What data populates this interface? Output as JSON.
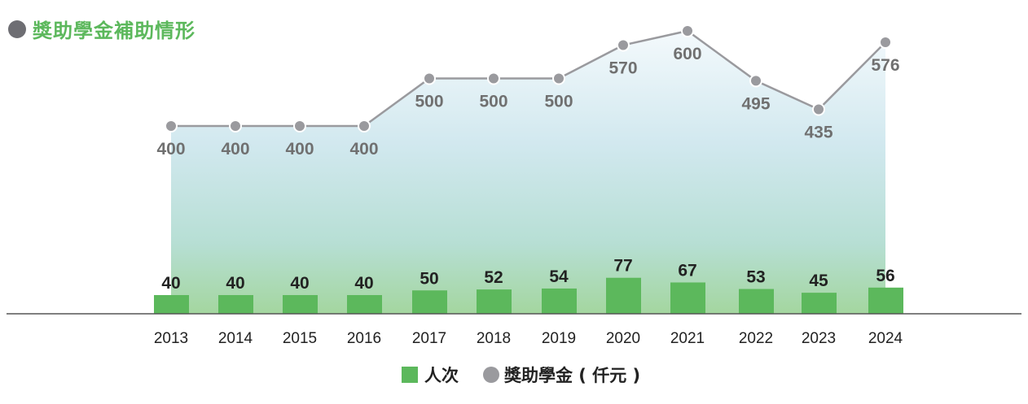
{
  "title": "獎助學金補助情形",
  "colors": {
    "title": "#5cb85c",
    "title_dot": "#6e6e73",
    "bar": "#5cb85c",
    "line": "#9a9a9e",
    "line_label": "#707070",
    "bar_label": "#222222",
    "area_top": "#e8f3f8",
    "area_mid": "#bfe0e6",
    "area_bottom": "#9fd49a",
    "axis": "#555555"
  },
  "legend": {
    "bar_label": "人次",
    "line_label": "獎助學金 ( 仟元 )"
  },
  "chart_data": {
    "type": "bar",
    "title": "獎助學金補助情形",
    "xlabel": "",
    "ylabel": "",
    "categories": [
      "2013",
      "2014",
      "2015",
      "2016",
      "2017",
      "2018",
      "2019",
      "2020",
      "2021",
      "2022",
      "2023",
      "2024"
    ],
    "series": [
      {
        "name": "人次",
        "type": "bar",
        "values": [
          40,
          40,
          40,
          40,
          50,
          52,
          54,
          77,
          67,
          53,
          45,
          56
        ]
      },
      {
        "name": "獎助學金 ( 仟元 )",
        "type": "line",
        "values": [
          400,
          400,
          400,
          400,
          500,
          500,
          500,
          570,
          600,
          495,
          435,
          576
        ]
      }
    ],
    "legend_position": "bottom",
    "grid": false
  }
}
